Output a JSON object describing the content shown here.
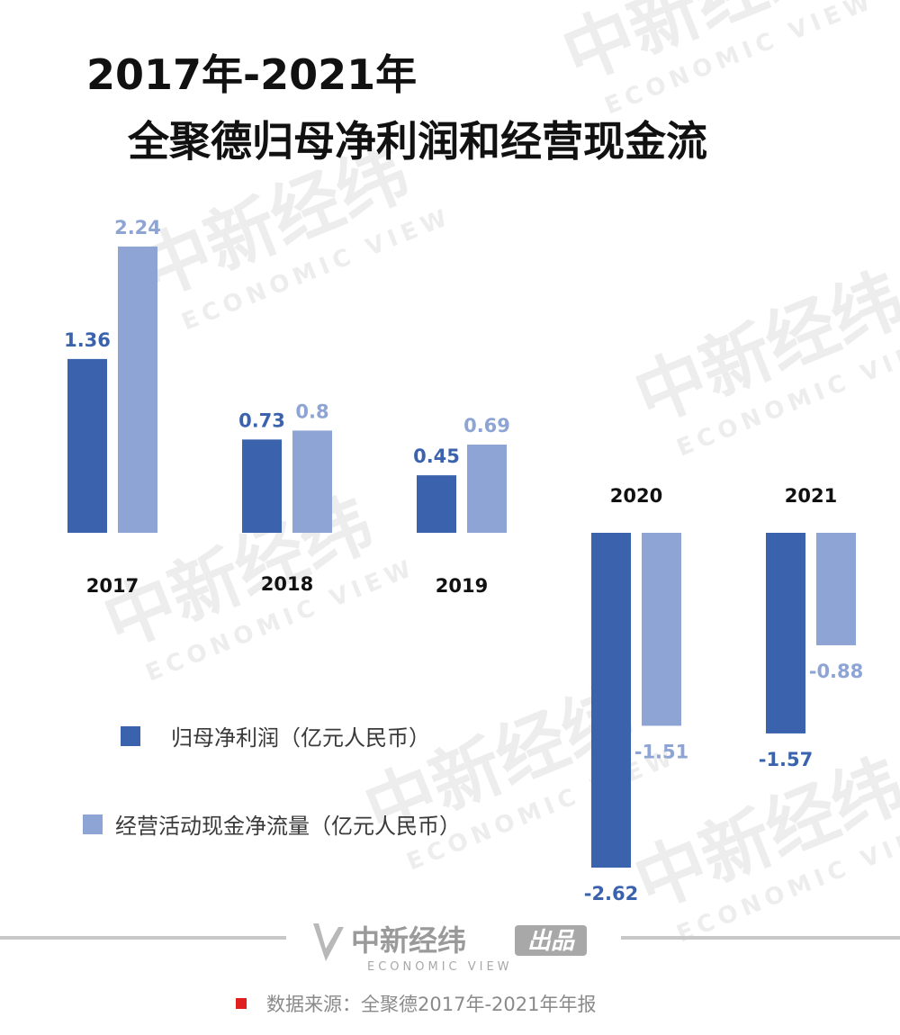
{
  "title": {
    "line1": "2017年-2021年",
    "line2": "全聚德归母净利润和经营现金流"
  },
  "colors": {
    "series_1": "#3b63ad",
    "series_2": "#8ea4d4",
    "label_1": "#3b63ad",
    "label_2": "#8ea4d4",
    "year_label": "#111111",
    "source_marker": "#e02020",
    "watermark": "#ececec"
  },
  "legend": {
    "items": [
      {
        "label": "归母净利润（亿元人民币）",
        "color": "#3b63ad"
      },
      {
        "label": "经营活动现金净流量（亿元人民币）",
        "color": "#8ea4d4"
      }
    ]
  },
  "footer": {
    "brand_name": "中新经纬",
    "brand_badge": "出品",
    "brand_english": "ECONOMIC VIEW",
    "source": "数据来源：全聚德2017年-2021年年报"
  },
  "watermark": {
    "cn": "中新经纬",
    "en": "ECONOMIC VIEW"
  },
  "chart_data": {
    "type": "bar",
    "title": "2017年-2021年 全聚德归母净利润和经营现金流",
    "categories": [
      "2017",
      "2018",
      "2019",
      "2020",
      "2021"
    ],
    "series": [
      {
        "name": "归母净利润（亿元人民币）",
        "values": [
          1.36,
          0.73,
          0.45,
          -2.62,
          -1.57
        ],
        "labels": [
          "1.36",
          "0.73",
          "0.45",
          "-2.62",
          "-1.57"
        ]
      },
      {
        "name": "经营活动现金净流量（亿元人民币）",
        "values": [
          2.24,
          0.8,
          0.69,
          -1.51,
          -0.88
        ],
        "labels": [
          "2.24",
          "0.8",
          "0.69",
          "-1.51",
          "-0.88"
        ]
      }
    ],
    "value_unit": "亿元人民币",
    "axes_visible": false,
    "grid": false,
    "legend_position": "left"
  }
}
